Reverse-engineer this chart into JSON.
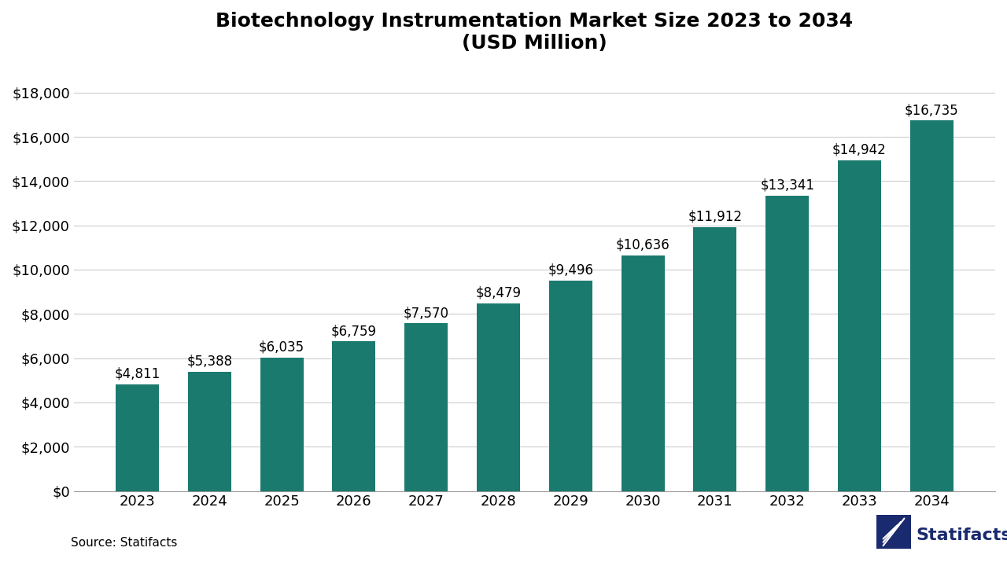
{
  "title_line1": "Biotechnology Instrumentation Market Size 2023 to 2034",
  "title_line2": "(USD Million)",
  "years": [
    2023,
    2024,
    2025,
    2026,
    2027,
    2028,
    2029,
    2030,
    2031,
    2032,
    2033,
    2034
  ],
  "values": [
    4811,
    5388,
    6035,
    6759,
    7570,
    8479,
    9496,
    10636,
    11912,
    13341,
    14942,
    16735
  ],
  "labels": [
    "$4,811",
    "$5,388",
    "$6,035",
    "$6,759",
    "$7,570",
    "$8,479",
    "$9,496",
    "$10,636",
    "$11,912",
    "$13,341",
    "$14,942",
    "$16,735"
  ],
  "bar_color": "#1a7a6e",
  "background_color": "#ffffff",
  "grid_color": "#cccccc",
  "ylabel_ticks": [
    "$0",
    "$2,000",
    "$4,000",
    "$6,000",
    "$8,000",
    "$10,000",
    "$12,000",
    "$14,000",
    "$16,000",
    "$18,000"
  ],
  "ytick_values": [
    0,
    2000,
    4000,
    6000,
    8000,
    10000,
    12000,
    14000,
    16000,
    18000
  ],
  "ylim": [
    0,
    19000
  ],
  "source_text": "Source: Statifacts",
  "statifacts_text": "Statifacts",
  "statifacts_color": "#1a2a6e",
  "title_fontsize": 18,
  "tick_fontsize": 13,
  "label_fontsize": 12,
  "source_fontsize": 11
}
